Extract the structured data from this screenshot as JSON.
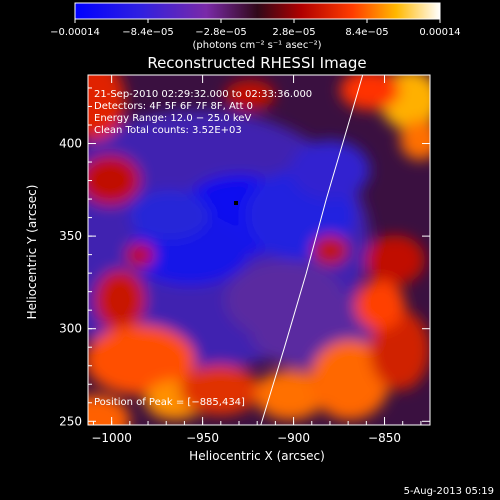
{
  "chart_data": {
    "type": "heatmap",
    "title": "Reconstructed RHESSI Image",
    "xlabel": "Heliocentric X (arcsec)",
    "ylabel": "Heliocentric Y (arcsec)",
    "xlim": [
      -1013,
      -825
    ],
    "ylim": [
      248,
      437
    ],
    "x_ticks": [
      -1000,
      -950,
      -900,
      -850
    ],
    "x_tick_labels": [
      "−1000",
      "−950",
      "−900",
      "−850"
    ],
    "y_ticks": [
      250,
      300,
      350,
      400
    ],
    "y_tick_labels": [
      "250",
      "300",
      "350",
      "400"
    ],
    "colorbar": {
      "min": -0.00014,
      "max": 0.00014,
      "ticks": [
        -0.00014,
        -8.4e-05,
        -2.8e-05,
        2.8e-05,
        8.4e-05,
        0.00014
      ],
      "tick_labels": [
        "−0.00014",
        "−8.4e−05",
        "−2.8e−05",
        "2.8e−05",
        "8.4e−05",
        "0.00014"
      ],
      "units": "(photons cm⁻² s⁻¹ asec⁻²)"
    },
    "annotations": {
      "time": "21-Sep-2010 02:29:32.000 to 02:33:36.000",
      "detectors": "Detectors: 4F 5F 6F 7F 8F, Att 0",
      "energy": "Energy Range: 12.0 − 25.0 keV",
      "clean": "Clean     Total counts: 3.52E+03",
      "peak": "Position of Peak = [−885,434]"
    },
    "peak_position": [
      -885,
      434
    ],
    "limb": [
      [
        -918,
        248
      ],
      [
        -905,
        290
      ],
      [
        -893,
        330
      ],
      [
        -882,
        370
      ],
      [
        -870,
        410
      ],
      [
        -862,
        437
      ]
    ],
    "grid": false,
    "legend": "colorbar-top"
  },
  "footer": {
    "date": "5-Aug-2013 05:19"
  },
  "colors": {
    "background": "#000000",
    "foreground": "#ffffff"
  }
}
